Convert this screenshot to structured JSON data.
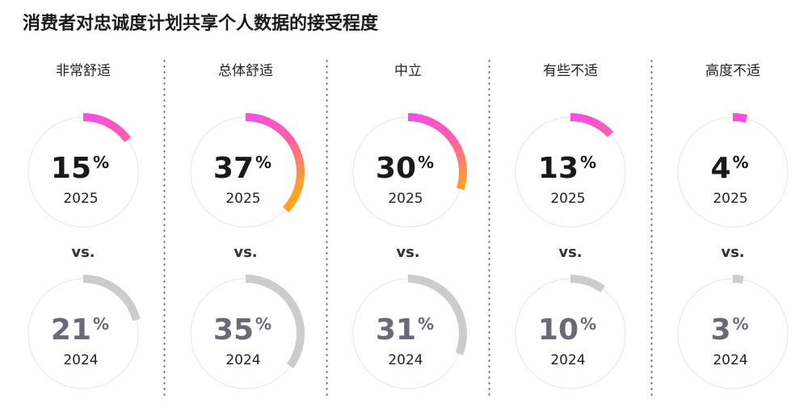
{
  "chart_data": {
    "type": "ring-gauge",
    "title": "消费者对忠诚度计划共享个人数据的接受程度",
    "categories": [
      "非常舒适",
      "总体舒适",
      "中立",
      "有些不适",
      "高度不适"
    ],
    "unit": "%",
    "comparison_label": "vs.",
    "max": 100,
    "series": [
      {
        "name": "2025",
        "colors": [
          "#f34fe3",
          "#ff5fa4",
          "#ffa420"
        ],
        "text_color": "#1a1a1a",
        "values": [
          15,
          37,
          30,
          13,
          4
        ]
      },
      {
        "name": "2024",
        "colors": [
          "#cccccc"
        ],
        "text_color": "#6a6a74",
        "values": [
          21,
          35,
          31,
          10,
          3
        ]
      }
    ]
  }
}
